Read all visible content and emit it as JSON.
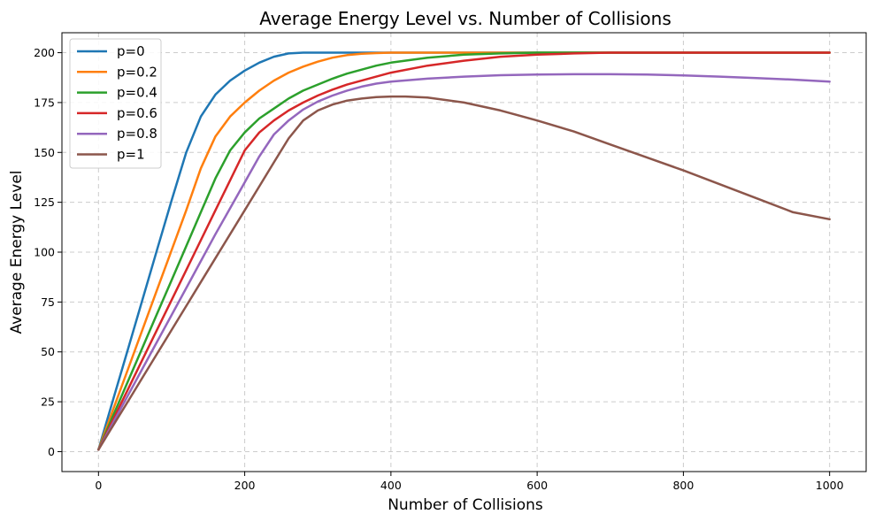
{
  "chart_data": {
    "type": "line",
    "title": "Average Energy Level vs. Number of Collisions",
    "xlabel": "Number of Collisions",
    "ylabel": "Average Energy Level",
    "xlim": [
      -50,
      1050
    ],
    "ylim": [
      -10,
      210
    ],
    "xticks": [
      0,
      200,
      400,
      600,
      800,
      1000
    ],
    "yticks": [
      0,
      25,
      50,
      75,
      100,
      125,
      150,
      175,
      200
    ],
    "grid": true,
    "legend_position": "top-left",
    "series": [
      {
        "name": "p=0",
        "color": "#1f77b4",
        "x": [
          0,
          20,
          40,
          60,
          80,
          100,
          120,
          140,
          160,
          180,
          200,
          220,
          240,
          260,
          280,
          300,
          400,
          500,
          600,
          700,
          800,
          900,
          1000
        ],
        "y": [
          1,
          26,
          51,
          76,
          101,
          126,
          150,
          168,
          179,
          186,
          191,
          195,
          198,
          199.6,
          200,
          200,
          200,
          200,
          200,
          200,
          200,
          200,
          200
        ]
      },
      {
        "name": "p=0.2",
        "color": "#ff7f0e",
        "x": [
          0,
          20,
          40,
          60,
          80,
          100,
          120,
          140,
          160,
          180,
          200,
          220,
          240,
          260,
          280,
          300,
          320,
          340,
          360,
          380,
          400,
          500,
          600,
          700,
          800,
          900,
          1000
        ],
        "y": [
          1,
          21,
          41,
          61,
          81,
          101,
          121,
          142,
          158,
          168,
          175,
          181,
          186,
          190,
          193,
          195.5,
          197.5,
          198.8,
          199.5,
          199.8,
          200,
          200,
          200,
          200,
          200,
          200,
          200
        ]
      },
      {
        "name": "p=0.4",
        "color": "#2ca02c",
        "x": [
          0,
          20,
          40,
          60,
          80,
          100,
          120,
          140,
          160,
          180,
          200,
          220,
          240,
          260,
          280,
          300,
          320,
          340,
          360,
          380,
          400,
          450,
          500,
          550,
          600,
          700,
          800,
          900,
          1000
        ],
        "y": [
          1,
          18,
          35,
          52,
          69,
          86,
          103,
          120,
          137,
          151,
          160,
          167,
          172,
          177,
          181,
          184,
          187,
          189.5,
          191.5,
          193.5,
          195,
          197.5,
          199,
          199.6,
          200,
          200,
          200,
          200,
          200
        ]
      },
      {
        "name": "p=0.6",
        "color": "#d62728",
        "x": [
          0,
          20,
          40,
          60,
          80,
          100,
          120,
          140,
          160,
          180,
          200,
          220,
          240,
          260,
          280,
          300,
          320,
          340,
          360,
          380,
          400,
          450,
          500,
          550,
          600,
          650,
          700,
          800,
          900,
          1000
        ],
        "y": [
          1,
          16,
          31,
          46,
          61,
          76,
          91,
          106,
          121,
          136,
          151,
          160,
          166,
          171,
          175,
          178.5,
          181.5,
          184,
          186,
          188,
          190,
          193.5,
          196,
          198,
          199,
          199.6,
          200,
          200,
          200,
          200
        ]
      },
      {
        "name": "p=0.8",
        "color": "#9467bd",
        "x": [
          0,
          20,
          40,
          60,
          80,
          100,
          120,
          140,
          160,
          180,
          200,
          220,
          240,
          260,
          280,
          300,
          320,
          340,
          360,
          380,
          400,
          450,
          500,
          550,
          600,
          650,
          700,
          750,
          800,
          850,
          900,
          950,
          1000
        ],
        "y": [
          1,
          14.5,
          28,
          41.5,
          55,
          68.5,
          82,
          95.5,
          109,
          122,
          135,
          148,
          159,
          166,
          171.5,
          175.5,
          178.5,
          181,
          183,
          184.5,
          185.5,
          187,
          188,
          188.7,
          189,
          189.2,
          189.2,
          189,
          188.6,
          188,
          187.3,
          186.5,
          185.5
        ]
      },
      {
        "name": "p=1",
        "color": "#8c564b",
        "x": [
          0,
          20,
          40,
          60,
          80,
          100,
          120,
          140,
          160,
          180,
          200,
          220,
          240,
          260,
          280,
          300,
          320,
          340,
          360,
          380,
          400,
          420,
          450,
          500,
          550,
          600,
          650,
          700,
          750,
          800,
          850,
          900,
          950,
          1000
        ],
        "y": [
          1,
          13,
          25,
          37,
          49,
          61,
          73,
          85,
          97,
          109,
          121,
          133,
          145,
          157,
          166,
          171,
          174,
          176,
          177,
          177.7,
          178,
          178,
          177.5,
          175,
          171,
          166,
          160.5,
          154,
          147.5,
          141,
          134,
          127,
          120,
          116.5
        ]
      }
    ]
  }
}
